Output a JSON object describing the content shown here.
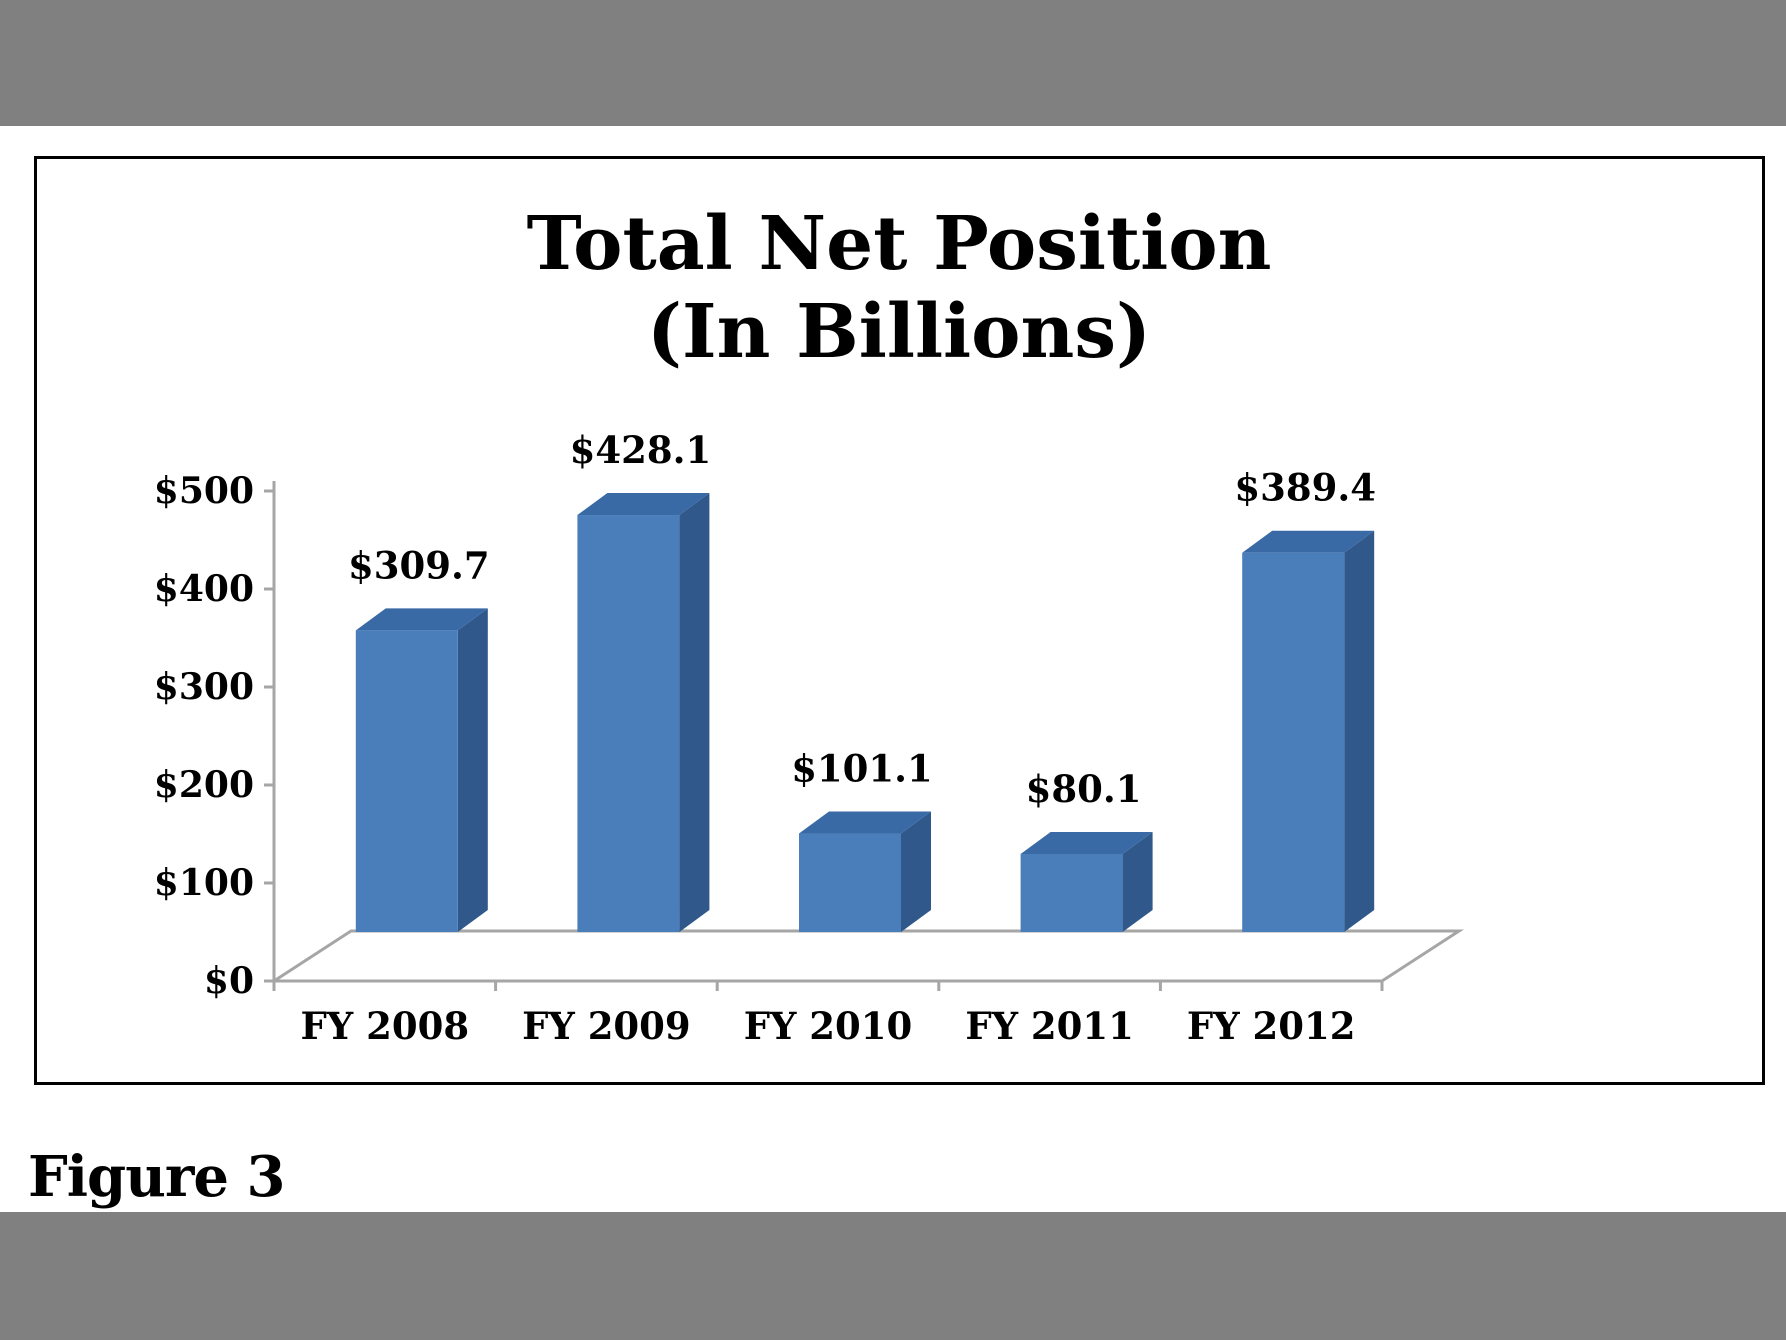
{
  "chart_data": {
    "type": "bar",
    "title": [
      "Total Net Position",
      "(In Billions)"
    ],
    "categories": [
      "FY 2008",
      "FY 2009",
      "FY 2010",
      "FY 2011",
      "FY 2012"
    ],
    "values": [
      309.7,
      428.1,
      101.1,
      80.1,
      389.4
    ],
    "data_labels": [
      "$309.7",
      "$428.1",
      "$101.1",
      "$80.1",
      "$389.4"
    ],
    "y_ticks": [
      0,
      100,
      200,
      300,
      400,
      500
    ],
    "y_tick_labels": [
      "$0",
      "$100",
      "$200",
      "$300",
      "$400",
      "$500"
    ],
    "ylim": [
      0,
      500
    ],
    "style": "3d-column",
    "grid": false,
    "legend": "none",
    "bar_color": "#4A7EBB",
    "bar_side_color": "#30588A",
    "bar_top_color": "#3A6AA6",
    "axis_color": "#A6A6A6"
  },
  "caption": "Figure 3"
}
